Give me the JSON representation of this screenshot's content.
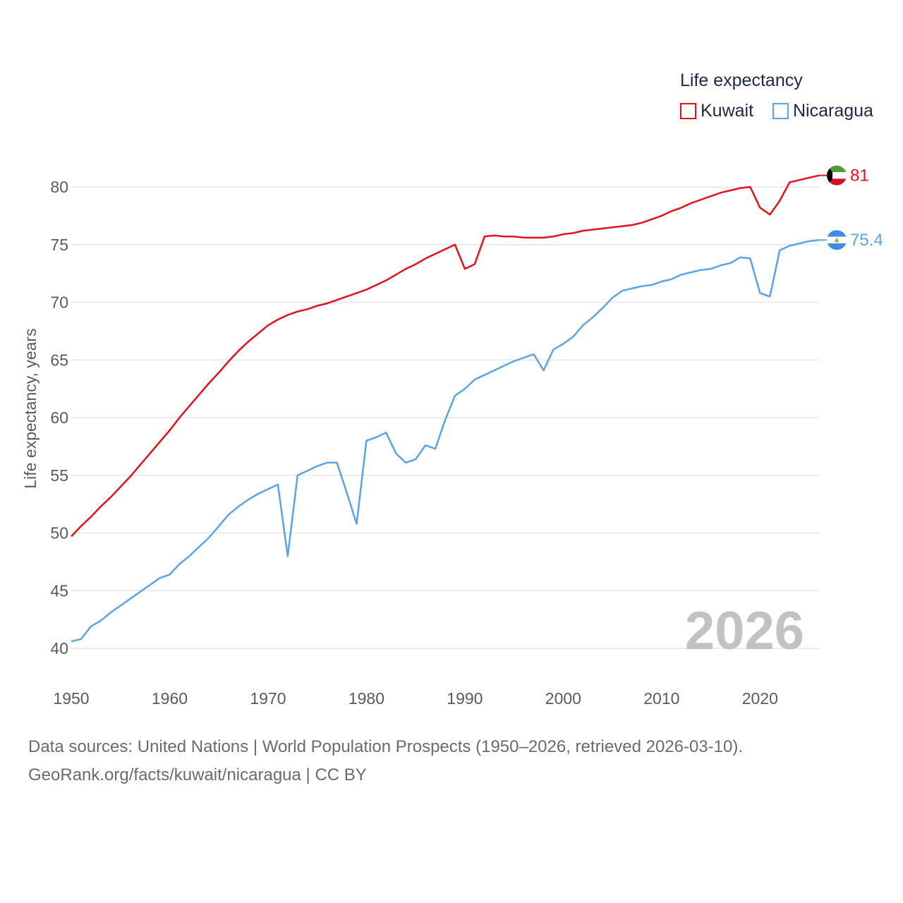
{
  "legend": {
    "title": "Life expectancy",
    "items": [
      {
        "label": "Kuwait",
        "color": "#e8111b"
      },
      {
        "label": "Nicaragua",
        "color": "#5aa4e6"
      }
    ]
  },
  "footer": {
    "line1": "Data sources: United Nations | World Population Prospects (1950–2026, retrieved 2026-03-10).",
    "line2": "GeoRank.org/facts/kuwait/nicaragua | CC BY"
  },
  "chart_data": {
    "type": "line",
    "title": "Life expectancy",
    "xlabel": "",
    "ylabel": "Life expectancy, years",
    "xlim": [
      1950,
      2026
    ],
    "ylim": [
      40,
      82
    ],
    "x_ticks": [
      1950,
      1960,
      1970,
      1980,
      1990,
      2000,
      2010,
      2020
    ],
    "y_ticks": [
      40,
      45,
      50,
      55,
      60,
      65,
      70,
      75,
      80
    ],
    "grid": true,
    "legend_position": "top-right",
    "current_year_label": "2026",
    "x": [
      1950,
      1951,
      1952,
      1953,
      1954,
      1955,
      1956,
      1957,
      1958,
      1959,
      1960,
      1961,
      1962,
      1963,
      1964,
      1965,
      1966,
      1967,
      1968,
      1969,
      1970,
      1971,
      1972,
      1973,
      1974,
      1975,
      1976,
      1977,
      1978,
      1979,
      1980,
      1981,
      1982,
      1983,
      1984,
      1985,
      1986,
      1987,
      1988,
      1989,
      1990,
      1991,
      1992,
      1993,
      1994,
      1995,
      1996,
      1997,
      1998,
      1999,
      2000,
      2001,
      2002,
      2003,
      2004,
      2005,
      2006,
      2007,
      2008,
      2009,
      2010,
      2011,
      2012,
      2013,
      2014,
      2015,
      2016,
      2017,
      2018,
      2019,
      2020,
      2021,
      2022,
      2023,
      2024,
      2025,
      2026
    ],
    "series": [
      {
        "name": "Kuwait",
        "color": "#e8111b",
        "end_label": "81",
        "flag": "kuwait",
        "values": [
          49.7,
          50.6,
          51.4,
          52.3,
          53.1,
          54.0,
          54.9,
          55.9,
          56.9,
          57.9,
          58.9,
          60.0,
          61.0,
          62.0,
          63.0,
          63.9,
          64.9,
          65.8,
          66.6,
          67.3,
          68.0,
          68.5,
          68.9,
          69.2,
          69.4,
          69.7,
          69.9,
          70.2,
          70.5,
          70.8,
          71.1,
          71.5,
          71.9,
          72.4,
          72.9,
          73.3,
          73.8,
          74.2,
          74.6,
          75.0,
          72.9,
          73.3,
          75.7,
          75.8,
          75.7,
          75.7,
          75.6,
          75.6,
          75.6,
          75.7,
          75.9,
          76.0,
          76.2,
          76.3,
          76.4,
          76.5,
          76.6,
          76.7,
          76.9,
          77.2,
          77.5,
          77.9,
          78.2,
          78.6,
          78.9,
          79.2,
          79.5,
          79.7,
          79.9,
          80.0,
          78.2,
          77.6,
          78.8,
          80.4,
          80.6,
          80.8,
          81.0
        ]
      },
      {
        "name": "Nicaragua",
        "color": "#5aa4e6",
        "end_label": "75.4",
        "flag": "nicaragua",
        "values": [
          40.6,
          40.8,
          41.9,
          42.4,
          43.1,
          43.7,
          44.3,
          44.9,
          45.5,
          46.1,
          46.4,
          47.3,
          48.0,
          48.8,
          49.6,
          50.6,
          51.6,
          52.3,
          52.9,
          53.4,
          53.8,
          54.2,
          48.0,
          55.0,
          55.4,
          55.8,
          56.1,
          56.1,
          53.5,
          50.8,
          58.0,
          58.3,
          58.7,
          56.9,
          56.1,
          56.4,
          57.6,
          57.3,
          59.8,
          61.9,
          62.5,
          63.3,
          63.7,
          64.1,
          64.5,
          64.9,
          65.2,
          65.5,
          64.1,
          65.9,
          66.4,
          67.0,
          68.0,
          68.7,
          69.5,
          70.4,
          71.0,
          71.2,
          71.4,
          71.5,
          71.8,
          72.0,
          72.4,
          72.6,
          72.8,
          72.9,
          73.2,
          73.4,
          73.9,
          73.8,
          70.8,
          70.5,
          74.5,
          74.9,
          75.1,
          75.3,
          75.4
        ]
      }
    ]
  }
}
